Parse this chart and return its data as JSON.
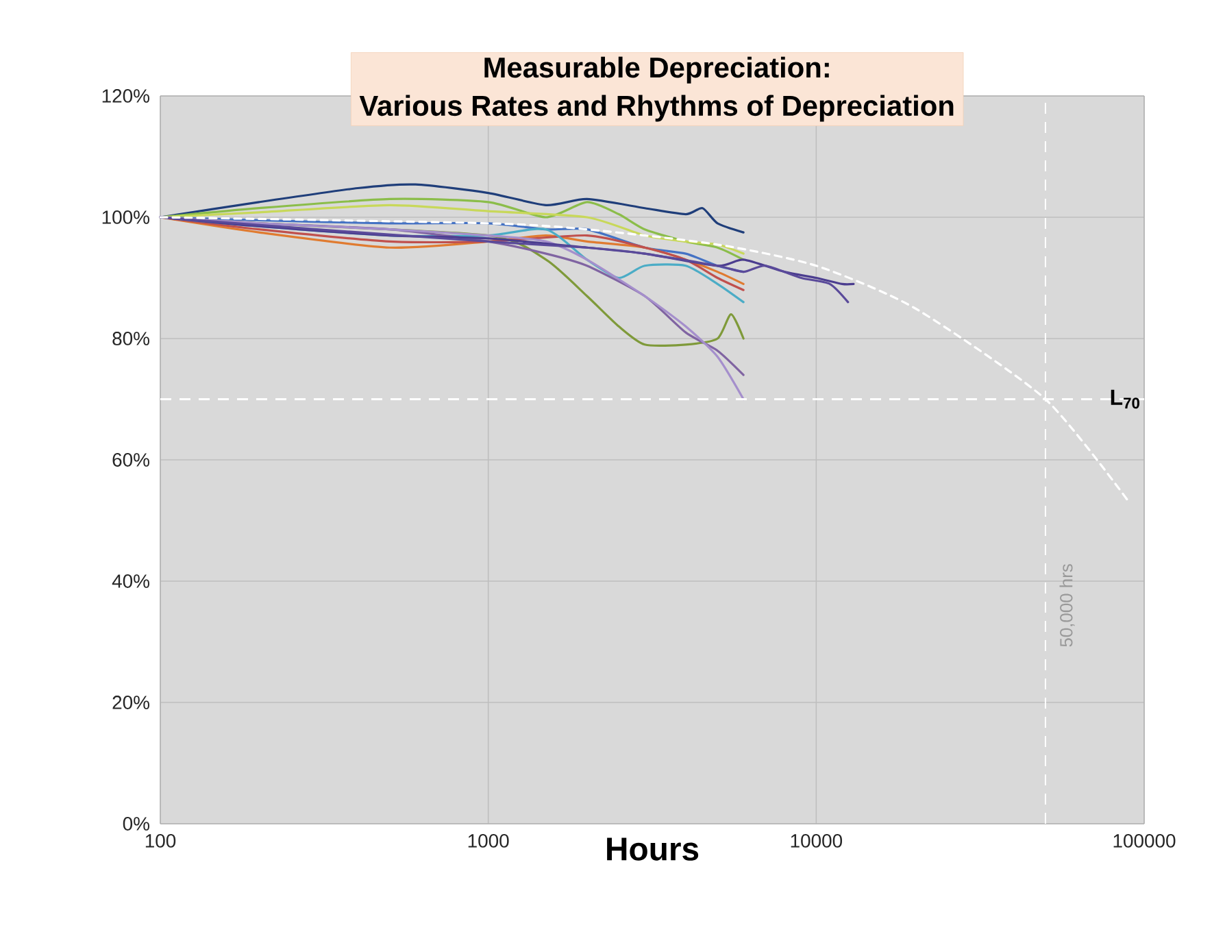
{
  "chart_data": {
    "type": "line",
    "title": "Measurable Depreciation:",
    "subtitle": "Various Rates and Rhythms of Depreciation",
    "xlabel": "Hours",
    "log": "x",
    "grid": true,
    "xlim": [
      100,
      100000
    ],
    "xticks": [
      100,
      1000,
      10000,
      100000
    ],
    "ylim": [
      0,
      120
    ],
    "yticks": [
      {
        "value": 0,
        "label": "0%"
      },
      {
        "value": 20,
        "label": "20%"
      },
      {
        "value": 40,
        "label": "40%"
      },
      {
        "value": 60,
        "label": "60%"
      },
      {
        "value": 80,
        "label": "80%"
      },
      {
        "value": 100,
        "label": "100%"
      },
      {
        "value": 120,
        "label": "120%"
      }
    ],
    "ref_lines": [
      {
        "axis": "y",
        "value": 70,
        "label": "L$_{70}$",
        "color": "#ffffff",
        "line_style": "dashed"
      },
      {
        "axis": "x",
        "value": 50000,
        "label": "50,000 hrs",
        "color": "#ffffff",
        "line_style": "dashed"
      }
    ],
    "series": [
      {
        "color": "#1f3e7a",
        "x": [
          100,
          200,
          400,
          600,
          1000,
          1500,
          2000,
          3000,
          4000,
          4500,
          5000,
          6000
        ],
        "values": [
          100,
          102.5,
          104.8,
          105.4,
          104,
          102,
          103,
          101.5,
          100.5,
          101.5,
          99,
          97.5
        ]
      },
      {
        "color": "#8bbd4a",
        "x": [
          100,
          200,
          500,
          1000,
          1500,
          2000,
          2500,
          3000,
          4000,
          5000,
          6000
        ],
        "values": [
          100,
          101.5,
          103,
          102.5,
          100,
          102.5,
          100.5,
          98,
          96,
          95,
          93
        ]
      },
      {
        "color": "#c8d85a",
        "x": [
          100,
          200,
          500,
          1000,
          2000,
          3000,
          4000,
          5000,
          6000
        ],
        "values": [
          100,
          100.8,
          102,
          101,
          100,
          97,
          96,
          95.5,
          94
        ]
      },
      {
        "color": "#4472c4",
        "x": [
          100,
          200,
          500,
          1000,
          1500,
          2000,
          3000,
          4000,
          5000,
          6000
        ],
        "values": [
          100,
          99.5,
          99,
          99,
          98,
          98,
          95,
          94,
          92,
          91
        ]
      },
      {
        "color": "#e07b30",
        "x": [
          100,
          200,
          500,
          1000,
          1500,
          2000,
          3000,
          4000,
          5000,
          6000
        ],
        "values": [
          100,
          97.5,
          95,
          96,
          97,
          96,
          95,
          93,
          91,
          89
        ]
      },
      {
        "color": "#c0504d",
        "x": [
          100,
          200,
          500,
          1000,
          2000,
          3000,
          4000,
          5000,
          6000
        ],
        "values": [
          100,
          98,
          96,
          96,
          97,
          95,
          93,
          90,
          88
        ]
      },
      {
        "color": "#4bacc6",
        "x": [
          100,
          200,
          500,
          1000,
          1500,
          2000,
          2500,
          3000,
          4000,
          5000,
          6000
        ],
        "values": [
          100,
          98.5,
          97,
          97,
          98,
          93,
          90,
          92,
          92,
          89,
          86
        ]
      },
      {
        "color": "#7f9a3a",
        "x": [
          100,
          200,
          1000,
          1500,
          2000,
          2500,
          3000,
          4000,
          5000,
          5500,
          6000
        ],
        "values": [
          100,
          99,
          97,
          93,
          87,
          82,
          79,
          79,
          80,
          84,
          80
        ]
      },
      {
        "color": "#8064a2",
        "x": [
          100,
          200,
          500,
          1000,
          1500,
          2000,
          3000,
          4000,
          5000,
          6000
        ],
        "values": [
          100,
          99,
          98,
          96,
          94,
          92,
          87,
          81,
          78,
          74
        ]
      },
      {
        "color": "#a58fcc",
        "x": [
          100,
          200,
          500,
          1000,
          1500,
          2000,
          3000,
          4000,
          5000,
          6000
        ],
        "values": [
          100,
          99,
          98,
          97,
          96,
          93,
          87,
          82,
          77,
          70
        ]
      },
      {
        "color": "#4b3d8f",
        "x": [
          100,
          200,
          500,
          1000,
          2000,
          3000,
          5000,
          6000,
          8000,
          10000,
          12000,
          13000
        ],
        "values": [
          100,
          98.5,
          97,
          96.5,
          95,
          94,
          92,
          93,
          91,
          90,
          89,
          89
        ]
      },
      {
        "color": "#5a4a9a",
        "x": [
          100,
          300,
          1000,
          2000,
          3000,
          5000,
          6000,
          7000,
          9000,
          11000,
          12500
        ],
        "values": [
          100,
          98,
          96,
          95,
          94,
          92,
          91,
          92,
          90,
          89,
          86
        ]
      },
      {
        "color": "#ffffff",
        "line_style": "dashed",
        "x": [
          100,
          1000,
          2000,
          5000,
          10000,
          20000,
          50000,
          90000
        ],
        "values": [
          100,
          99,
          98,
          95.5,
          92,
          85,
          70,
          53
        ]
      }
    ]
  }
}
